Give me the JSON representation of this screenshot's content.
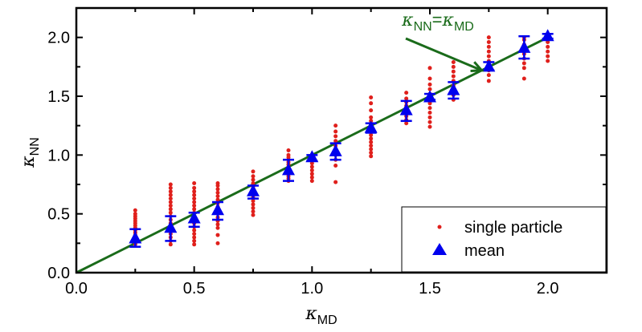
{
  "chart_data": {
    "type": "scatter",
    "title": "",
    "xlabel": {
      "main": "κ",
      "sub": "MD"
    },
    "ylabel": {
      "main": "κ",
      "sub": "NN"
    },
    "xlim": [
      0,
      2.25
    ],
    "ylim": [
      0,
      2.25
    ],
    "xticks": [
      "0.0",
      "0.5",
      "1.0",
      "1.5",
      "2.0"
    ],
    "yticks": [
      "0.0",
      "0.5",
      "1.0",
      "1.5",
      "2.0"
    ],
    "xtick_values": [
      0,
      0.5,
      1.0,
      1.5,
      2.0
    ],
    "ytick_values": [
      0,
      0.5,
      1.0,
      1.5,
      2.0
    ],
    "grid": false,
    "legend_position": "bottom-right",
    "annotation": {
      "lhs_main": "κ",
      "lhs_sub": "NN",
      "eq": "=",
      "rhs_main": "κ",
      "rhs_sub": "MD",
      "target": [
        1.72,
        1.72
      ]
    },
    "reference_line": {
      "label": "κNN=κMD",
      "from": [
        0,
        0
      ],
      "to": [
        2.0,
        2.0
      ],
      "color": "#1a6b1a"
    },
    "series": [
      {
        "name": "single particle",
        "color": "#e0201c",
        "marker": "dot",
        "points": [
          {
            "x": 0.25,
            "y": [
              0.24,
              0.26,
              0.28,
              0.3,
              0.32,
              0.34,
              0.36,
              0.38,
              0.4,
              0.42,
              0.44,
              0.46,
              0.48,
              0.5,
              0.53
            ]
          },
          {
            "x": 0.4,
            "y": [
              0.24,
              0.27,
              0.3,
              0.33,
              0.36,
              0.39,
              0.42,
              0.45,
              0.48,
              0.51,
              0.54,
              0.57,
              0.6,
              0.63,
              0.66,
              0.69,
              0.72,
              0.75
            ]
          },
          {
            "x": 0.5,
            "y": [
              0.24,
              0.27,
              0.3,
              0.33,
              0.36,
              0.39,
              0.42,
              0.45,
              0.48,
              0.51,
              0.54,
              0.57,
              0.6,
              0.63,
              0.66,
              0.69,
              0.72,
              0.76
            ]
          },
          {
            "x": 0.6,
            "y": [
              0.25,
              0.32,
              0.38,
              0.41,
              0.44,
              0.47,
              0.5,
              0.53,
              0.56,
              0.59,
              0.62,
              0.65,
              0.68,
              0.71,
              0.74,
              0.76
            ]
          },
          {
            "x": 0.75,
            "y": [
              0.49,
              0.52,
              0.55,
              0.58,
              0.61,
              0.64,
              0.67,
              0.7,
              0.73,
              0.76,
              0.79,
              0.82,
              0.86
            ]
          },
          {
            "x": 0.9,
            "y": [
              0.78,
              0.8,
              0.82,
              0.84,
              0.86,
              0.88,
              0.9,
              0.92,
              0.94,
              0.96,
              0.98,
              1.0,
              1.04
            ]
          },
          {
            "x": 1.0,
            "y": [
              0.78,
              0.81,
              0.84,
              0.87,
              0.9,
              0.93,
              0.96,
              0.99,
              1.0
            ]
          },
          {
            "x": 1.1,
            "y": [
              0.77,
              0.91,
              0.96,
              1.0,
              1.04,
              1.08,
              1.12,
              1.16,
              1.2,
              1.25
            ]
          },
          {
            "x": 1.25,
            "y": [
              0.99,
              1.02,
              1.05,
              1.08,
              1.11,
              1.14,
              1.17,
              1.2,
              1.23,
              1.26,
              1.29,
              1.32,
              1.38,
              1.44,
              1.49
            ]
          },
          {
            "x": 1.4,
            "y": [
              1.27,
              1.3,
              1.33,
              1.36,
              1.39,
              1.42,
              1.45,
              1.48,
              1.53
            ]
          },
          {
            "x": 1.5,
            "y": [
              1.24,
              1.28,
              1.32,
              1.36,
              1.4,
              1.44,
              1.48,
              1.52,
              1.56,
              1.6,
              1.65,
              1.74
            ]
          },
          {
            "x": 1.6,
            "y": [
              1.47,
              1.51,
              1.55,
              1.59,
              1.63,
              1.67,
              1.71,
              1.75,
              1.79
            ]
          },
          {
            "x": 1.75,
            "y": [
              1.63,
              1.68,
              1.72,
              1.76,
              1.8,
              1.84,
              1.88,
              1.92,
              1.96,
              2.0
            ]
          },
          {
            "x": 1.9,
            "y": [
              1.65,
              1.74,
              1.78,
              1.82,
              1.86,
              1.9,
              1.94,
              1.98,
              2.0
            ]
          },
          {
            "x": 2.0,
            "y": [
              1.8,
              1.84,
              1.88,
              1.92,
              1.96,
              2.0,
              2.01
            ]
          }
        ]
      },
      {
        "name": "mean",
        "color": "#0000ee",
        "marker": "triangle",
        "points": [
          {
            "x": 0.25,
            "y": 0.29,
            "err_low": 0.22,
            "err_high": 0.37
          },
          {
            "x": 0.4,
            "y": 0.38,
            "err_low": 0.27,
            "err_high": 0.48
          },
          {
            "x": 0.5,
            "y": 0.46,
            "err_low": 0.39,
            "err_high": 0.51
          },
          {
            "x": 0.6,
            "y": 0.53,
            "err_low": 0.45,
            "err_high": 0.6
          },
          {
            "x": 0.75,
            "y": 0.69,
            "err_low": 0.63,
            "err_high": 0.74
          },
          {
            "x": 0.9,
            "y": 0.87,
            "err_low": 0.78,
            "err_high": 0.96
          },
          {
            "x": 1.0,
            "y": 0.98,
            "err_low": 0.95,
            "err_high": 1.0
          },
          {
            "x": 1.1,
            "y": 1.03,
            "err_low": 0.96,
            "err_high": 1.1
          },
          {
            "x": 1.25,
            "y": 1.23,
            "err_low": 1.19,
            "err_high": 1.27
          },
          {
            "x": 1.4,
            "y": 1.38,
            "err_low": 1.29,
            "err_high": 1.46
          },
          {
            "x": 1.5,
            "y": 1.49,
            "err_low": 1.47,
            "err_high": 1.52
          },
          {
            "x": 1.6,
            "y": 1.55,
            "err_low": 1.48,
            "err_high": 1.62
          },
          {
            "x": 1.75,
            "y": 1.75,
            "err_low": 1.72,
            "err_high": 1.79
          },
          {
            "x": 1.9,
            "y": 1.91,
            "err_low": 1.82,
            "err_high": 2.01
          },
          {
            "x": 2.0,
            "y": 2.01,
            "err_low": 1.99,
            "err_high": 2.03
          }
        ]
      }
    ]
  }
}
